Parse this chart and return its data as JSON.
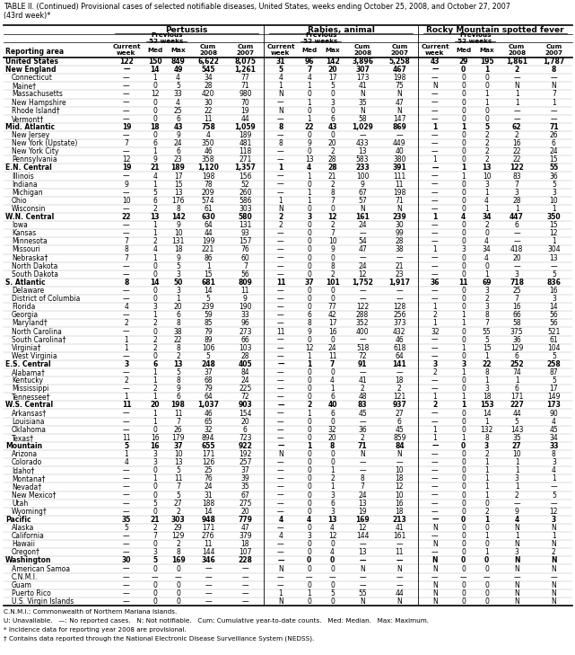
{
  "title_line1": "TABLE II. (Continued) Provisional cases of selected notifiable diseases, United States, weeks ending October 25, 2008, and October 27, 2007",
  "title_line2": "(43rd week)*",
  "col_groups": [
    "Pertussis",
    "Rabies, animal",
    "Rocky Mountain spotted fever"
  ],
  "footnote1": "C.N.M.I.: Commonwealth of Northern Mariana Islands.",
  "footnote2": "U: Unavailable.   —: No reported cases.   N: Not notifiable.   Cum: Cumulative year-to-date counts.   Med: Median.   Max: Maximum.",
  "footnote3": "* Incidence data for reporting year 2008 are provisional.",
  "footnote4": "† Contains data reported through the National Electronic Disease Surveillance System (NEDSS).",
  "rows": [
    [
      "United States",
      "122",
      "150",
      "849",
      "6,622",
      "8,075",
      "31",
      "96",
      "142",
      "3,896",
      "5,258",
      "43",
      "29",
      "195",
      "1,861",
      "1,787"
    ],
    [
      "New England",
      "—",
      "14",
      "49",
      "545",
      "1,261",
      "5",
      "7",
      "20",
      "307",
      "467",
      "—",
      "0",
      "1",
      "2",
      "8"
    ],
    [
      "Connecticut",
      "—",
      "1",
      "4",
      "34",
      "77",
      "4",
      "4",
      "17",
      "173",
      "198",
      "—",
      "0",
      "0",
      "—",
      "—"
    ],
    [
      "Maine†",
      "—",
      "0",
      "5",
      "28",
      "71",
      "1",
      "1",
      "5",
      "41",
      "75",
      "N",
      "0",
      "0",
      "N",
      "N"
    ],
    [
      "Massachusetts",
      "—",
      "12",
      "33",
      "420",
      "980",
      "N",
      "0",
      "0",
      "N",
      "N",
      "—",
      "0",
      "1",
      "1",
      "7"
    ],
    [
      "New Hampshire",
      "—",
      "0",
      "4",
      "30",
      "70",
      "—",
      "1",
      "3",
      "35",
      "47",
      "—",
      "0",
      "1",
      "1",
      "1"
    ],
    [
      "Rhode Island†",
      "—",
      "0",
      "25",
      "22",
      "19",
      "N",
      "0",
      "0",
      "N",
      "N",
      "—",
      "0",
      "0",
      "—",
      "—"
    ],
    [
      "Vermont†",
      "—",
      "0",
      "6",
      "11",
      "44",
      "—",
      "1",
      "6",
      "58",
      "147",
      "—",
      "0",
      "0",
      "—",
      "—"
    ],
    [
      "Mid. Atlantic",
      "19",
      "18",
      "43",
      "758",
      "1,059",
      "8",
      "22",
      "43",
      "1,029",
      "869",
      "1",
      "1",
      "5",
      "62",
      "71"
    ],
    [
      "New Jersey",
      "—",
      "0",
      "9",
      "4",
      "189",
      "—",
      "0",
      "0",
      "—",
      "—",
      "—",
      "0",
      "2",
      "2",
      "26"
    ],
    [
      "New York (Upstate)",
      "7",
      "6",
      "24",
      "350",
      "481",
      "8",
      "9",
      "20",
      "433",
      "449",
      "—",
      "0",
      "2",
      "16",
      "6"
    ],
    [
      "New York City",
      "—",
      "1",
      "6",
      "46",
      "118",
      "—",
      "0",
      "2",
      "13",
      "40",
      "—",
      "0",
      "2",
      "22",
      "24"
    ],
    [
      "Pennsylvania",
      "12",
      "9",
      "23",
      "358",
      "271",
      "—",
      "13",
      "28",
      "583",
      "380",
      "1",
      "0",
      "2",
      "22",
      "15"
    ],
    [
      "E.N. Central",
      "19",
      "21",
      "189",
      "1,120",
      "1,357",
      "1",
      "4",
      "28",
      "233",
      "391",
      "—",
      "1",
      "13",
      "122",
      "55"
    ],
    [
      "Illinois",
      "—",
      "4",
      "17",
      "198",
      "156",
      "—",
      "1",
      "21",
      "100",
      "111",
      "—",
      "1",
      "10",
      "83",
      "36"
    ],
    [
      "Indiana",
      "9",
      "1",
      "15",
      "78",
      "52",
      "—",
      "0",
      "2",
      "9",
      "11",
      "—",
      "0",
      "3",
      "7",
      "5"
    ],
    [
      "Michigan",
      "—",
      "5",
      "13",
      "209",
      "260",
      "—",
      "1",
      "8",
      "67",
      "198",
      "—",
      "0",
      "1",
      "3",
      "3"
    ],
    [
      "Ohio",
      "10",
      "6",
      "176",
      "574",
      "586",
      "1",
      "1",
      "7",
      "57",
      "71",
      "—",
      "0",
      "4",
      "28",
      "10"
    ],
    [
      "Wisconsin",
      "—",
      "2",
      "8",
      "61",
      "303",
      "N",
      "0",
      "0",
      "N",
      "N",
      "—",
      "0",
      "1",
      "1",
      "1"
    ],
    [
      "W.N. Central",
      "22",
      "13",
      "142",
      "630",
      "580",
      "2",
      "3",
      "12",
      "161",
      "239",
      "1",
      "4",
      "34",
      "447",
      "350"
    ],
    [
      "Iowa",
      "—",
      "1",
      "9",
      "64",
      "131",
      "2",
      "0",
      "2",
      "24",
      "30",
      "—",
      "0",
      "2",
      "6",
      "15"
    ],
    [
      "Kansas",
      "—",
      "1",
      "10",
      "44",
      "93",
      "—",
      "0",
      "7",
      "—",
      "99",
      "—",
      "0",
      "0",
      "—",
      "12"
    ],
    [
      "Minnesota",
      "7",
      "2",
      "131",
      "199",
      "157",
      "—",
      "0",
      "10",
      "54",
      "28",
      "—",
      "0",
      "4",
      "—",
      "1"
    ],
    [
      "Missouri",
      "8",
      "4",
      "18",
      "221",
      "76",
      "—",
      "0",
      "9",
      "47",
      "38",
      "1",
      "3",
      "34",
      "418",
      "304"
    ],
    [
      "Nebraska†",
      "7",
      "1",
      "9",
      "86",
      "60",
      "—",
      "0",
      "0",
      "—",
      "—",
      "—",
      "0",
      "4",
      "20",
      "13"
    ],
    [
      "North Dakota",
      "—",
      "0",
      "5",
      "1",
      "7",
      "—",
      "0",
      "8",
      "24",
      "21",
      "—",
      "0",
      "0",
      "—",
      "—"
    ],
    [
      "South Dakota",
      "—",
      "0",
      "3",
      "15",
      "56",
      "—",
      "0",
      "2",
      "12",
      "23",
      "—",
      "0",
      "1",
      "3",
      "5"
    ],
    [
      "S. Atlantic",
      "8",
      "14",
      "50",
      "681",
      "809",
      "11",
      "37",
      "101",
      "1,752",
      "1,917",
      "36",
      "11",
      "69",
      "718",
      "836"
    ],
    [
      "Delaware",
      "—",
      "0",
      "3",
      "14",
      "11",
      "—",
      "0",
      "0",
      "—",
      "—",
      "—",
      "0",
      "3",
      "25",
      "16"
    ],
    [
      "District of Columbia",
      "—",
      "0",
      "1",
      "5",
      "9",
      "—",
      "0",
      "0",
      "—",
      "—",
      "—",
      "0",
      "2",
      "7",
      "3"
    ],
    [
      "Florida",
      "4",
      "3",
      "20",
      "239",
      "190",
      "—",
      "0",
      "77",
      "122",
      "128",
      "1",
      "0",
      "3",
      "16",
      "14"
    ],
    [
      "Georgia",
      "—",
      "1",
      "6",
      "59",
      "33",
      "—",
      "6",
      "42",
      "288",
      "256",
      "2",
      "1",
      "8",
      "66",
      "56"
    ],
    [
      "Maryland†",
      "2",
      "2",
      "8",
      "85",
      "96",
      "—",
      "8",
      "17",
      "352",
      "373",
      "1",
      "1",
      "7",
      "58",
      "56"
    ],
    [
      "North Carolina",
      "—",
      "0",
      "38",
      "79",
      "273",
      "11",
      "9",
      "16",
      "400",
      "432",
      "32",
      "0",
      "55",
      "375",
      "521"
    ],
    [
      "South Carolina†",
      "1",
      "2",
      "22",
      "89",
      "66",
      "—",
      "0",
      "0",
      "—",
      "46",
      "—",
      "0",
      "5",
      "36",
      "61"
    ],
    [
      "Virginia†",
      "1",
      "2",
      "8",
      "106",
      "103",
      "—",
      "12",
      "24",
      "518",
      "618",
      "—",
      "1",
      "15",
      "129",
      "104"
    ],
    [
      "West Virginia",
      "—",
      "0",
      "2",
      "5",
      "28",
      "—",
      "1",
      "11",
      "72",
      "64",
      "—",
      "0",
      "1",
      "6",
      "5"
    ],
    [
      "E.S. Central",
      "3",
      "6",
      "13",
      "248",
      "405",
      "—",
      "1",
      "7",
      "91",
      "141",
      "3",
      "3",
      "22",
      "252",
      "258"
    ],
    [
      "Alabama†",
      "—",
      "1",
      "5",
      "37",
      "84",
      "—",
      "0",
      "0",
      "—",
      "—",
      "2",
      "1",
      "8",
      "74",
      "87"
    ],
    [
      "Kentucky",
      "2",
      "1",
      "8",
      "68",
      "24",
      "—",
      "0",
      "4",
      "41",
      "18",
      "—",
      "0",
      "1",
      "1",
      "5"
    ],
    [
      "Mississippi",
      "—",
      "2",
      "9",
      "79",
      "225",
      "—",
      "0",
      "1",
      "2",
      "2",
      "—",
      "0",
      "3",
      "6",
      "17"
    ],
    [
      "Tennessee†",
      "1",
      "1",
      "6",
      "64",
      "72",
      "—",
      "0",
      "6",
      "48",
      "121",
      "1",
      "1",
      "18",
      "171",
      "149"
    ],
    [
      "W.S. Central",
      "11",
      "20",
      "198",
      "1,037",
      "903",
      "—",
      "2",
      "40",
      "83",
      "937",
      "2",
      "1",
      "153",
      "227",
      "173"
    ],
    [
      "Arkansas†",
      "—",
      "1",
      "11",
      "46",
      "154",
      "—",
      "1",
      "6",
      "45",
      "27",
      "—",
      "0",
      "14",
      "44",
      "90"
    ],
    [
      "Louisiana",
      "—",
      "1",
      "7",
      "65",
      "20",
      "—",
      "0",
      "0",
      "—",
      "6",
      "—",
      "0",
      "1",
      "5",
      "4"
    ],
    [
      "Oklahoma",
      "—",
      "0",
      "26",
      "32",
      "6",
      "—",
      "0",
      "32",
      "36",
      "45",
      "1",
      "0",
      "132",
      "143",
      "45"
    ],
    [
      "Texas†",
      "11",
      "16",
      "179",
      "894",
      "723",
      "—",
      "0",
      "20",
      "2",
      "859",
      "1",
      "1",
      "8",
      "35",
      "34"
    ],
    [
      "Mountain",
      "5",
      "16",
      "37",
      "655",
      "922",
      "—",
      "1",
      "8",
      "71",
      "84",
      "—",
      "0",
      "3",
      "27",
      "33"
    ],
    [
      "Arizona",
      "1",
      "3",
      "10",
      "171",
      "192",
      "N",
      "0",
      "0",
      "N",
      "N",
      "—",
      "0",
      "2",
      "10",
      "8"
    ],
    [
      "Colorado",
      "4",
      "3",
      "13",
      "126",
      "257",
      "—",
      "0",
      "0",
      "—",
      "—",
      "—",
      "0",
      "1",
      "1",
      "3"
    ],
    [
      "Idaho†",
      "—",
      "0",
      "5",
      "25",
      "37",
      "—",
      "0",
      "1",
      "—",
      "10",
      "—",
      "0",
      "1",
      "1",
      "4"
    ],
    [
      "Montana†",
      "—",
      "1",
      "11",
      "76",
      "39",
      "—",
      "0",
      "2",
      "8",
      "18",
      "—",
      "0",
      "1",
      "3",
      "1"
    ],
    [
      "Nevada†",
      "—",
      "0",
      "7",
      "24",
      "35",
      "—",
      "0",
      "1",
      "7",
      "12",
      "—",
      "0",
      "1",
      "1",
      "—"
    ],
    [
      "New Mexico†",
      "—",
      "0",
      "5",
      "31",
      "67",
      "—",
      "0",
      "3",
      "24",
      "10",
      "—",
      "0",
      "1",
      "2",
      "5"
    ],
    [
      "Utah",
      "—",
      "5",
      "27",
      "188",
      "275",
      "—",
      "0",
      "6",
      "13",
      "16",
      "—",
      "0",
      "0",
      "—",
      "—"
    ],
    [
      "Wyoming†",
      "—",
      "0",
      "2",
      "14",
      "20",
      "—",
      "0",
      "3",
      "19",
      "18",
      "—",
      "0",
      "2",
      "9",
      "12"
    ],
    [
      "Pacific",
      "35",
      "21",
      "303",
      "948",
      "779",
      "4",
      "4",
      "13",
      "169",
      "213",
      "—",
      "0",
      "1",
      "4",
      "3"
    ],
    [
      "Alaska",
      "5",
      "2",
      "29",
      "171",
      "47",
      "—",
      "0",
      "4",
      "12",
      "41",
      "N",
      "0",
      "0",
      "N",
      "N"
    ],
    [
      "California",
      "—",
      "7",
      "129",
      "276",
      "379",
      "4",
      "3",
      "12",
      "144",
      "161",
      "—",
      "0",
      "1",
      "1",
      "1"
    ],
    [
      "Hawaii",
      "—",
      "0",
      "2",
      "11",
      "18",
      "—",
      "0",
      "0",
      "—",
      "—",
      "N",
      "0",
      "0",
      "N",
      "N"
    ],
    [
      "Oregon†",
      "—",
      "3",
      "8",
      "144",
      "107",
      "—",
      "0",
      "4",
      "13",
      "11",
      "—",
      "0",
      "1",
      "3",
      "2"
    ],
    [
      "Washington",
      "30",
      "5",
      "169",
      "346",
      "228",
      "—",
      "0",
      "0",
      "—",
      "—",
      "N",
      "0",
      "0",
      "N",
      "N"
    ],
    [
      "American Samoa",
      "—",
      "0",
      "0",
      "—",
      "—",
      "N",
      "0",
      "0",
      "N",
      "N",
      "N",
      "0",
      "0",
      "N",
      "N"
    ],
    [
      "C.N.M.I.",
      "—",
      "—",
      "—",
      "—",
      "—",
      "—",
      "—",
      "—",
      "—",
      "—",
      "—",
      "—",
      "—",
      "—",
      "—"
    ],
    [
      "Guam",
      "—",
      "0",
      "0",
      "—",
      "—",
      "—",
      "0",
      "0",
      "—",
      "—",
      "N",
      "0",
      "0",
      "N",
      "N"
    ],
    [
      "Puerto Rico",
      "—",
      "0",
      "0",
      "—",
      "—",
      "1",
      "1",
      "5",
      "55",
      "44",
      "N",
      "0",
      "0",
      "N",
      "N"
    ],
    [
      "U.S. Virgin Islands",
      "—",
      "0",
      "0",
      "—",
      "—",
      "N",
      "0",
      "0",
      "N",
      "N",
      "N",
      "0",
      "0",
      "N",
      "N"
    ]
  ],
  "bold_rows": [
    0,
    1,
    8,
    13,
    19,
    27,
    37,
    42,
    47,
    56,
    61
  ],
  "bg_color": "#ffffff",
  "text_color": "#000000"
}
